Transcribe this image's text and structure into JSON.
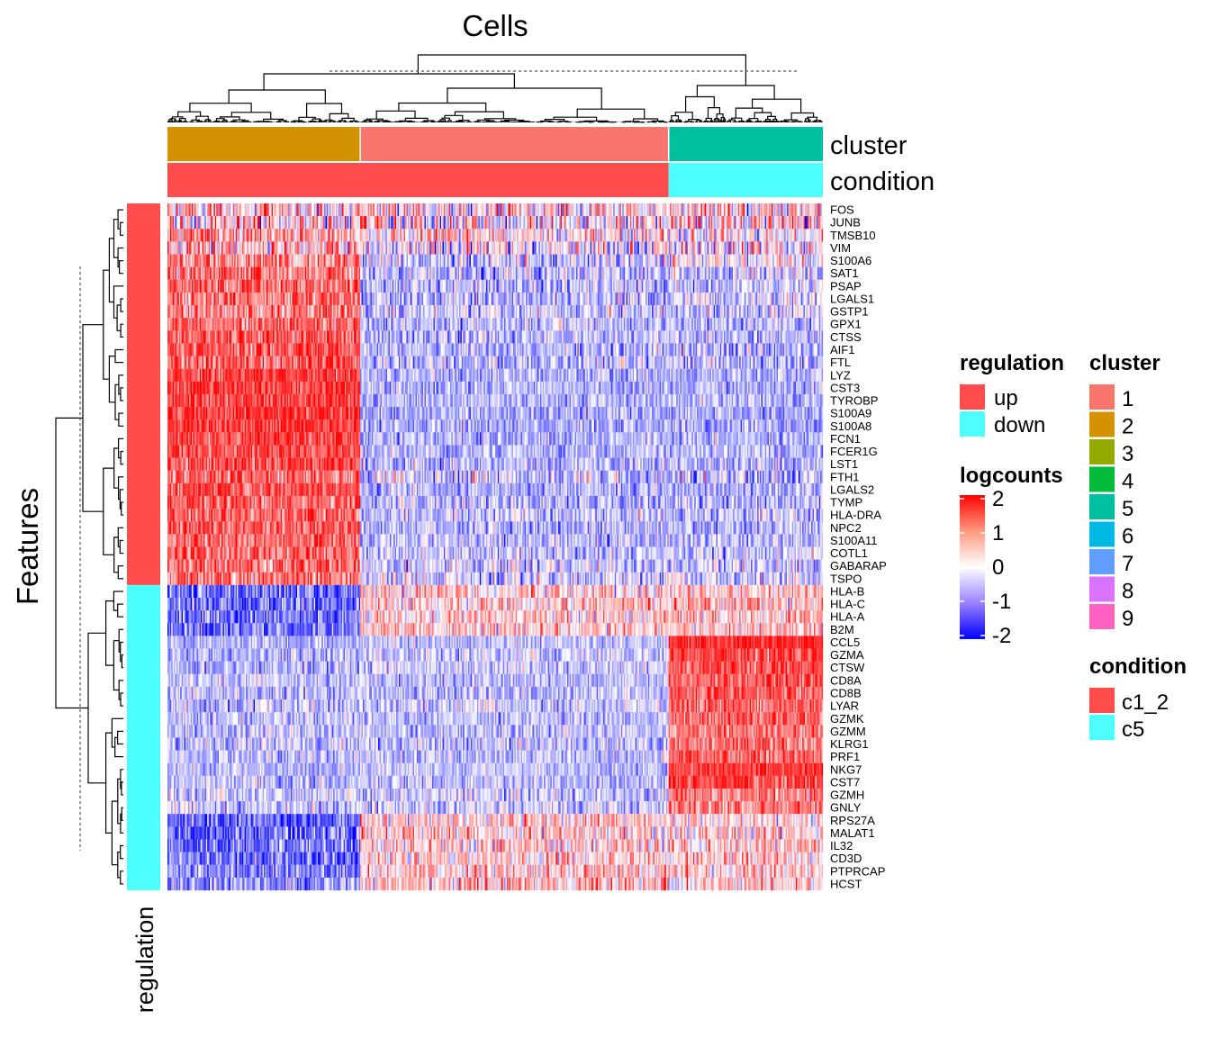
{
  "chart_data": {
    "type": "heatmap",
    "title": "Cells",
    "row_title": "Features",
    "value_name": "logcounts",
    "cell_groups": [
      {
        "cluster": "2",
        "condition": "c1_2",
        "approx_cells": 150
      },
      {
        "cluster": "1",
        "condition": "c1_2",
        "approx_cells": 240
      },
      {
        "cluster": "5",
        "condition": "c5",
        "approx_cells": 120
      }
    ],
    "features": [
      {
        "name": "FOS",
        "regulation": "up",
        "means": [
          0.4,
          0.3,
          0.4
        ],
        "noise": 1.2
      },
      {
        "name": "JUNB",
        "regulation": "up",
        "means": [
          0.2,
          0.1,
          0.3
        ],
        "noise": 1.4
      },
      {
        "name": "TMSB10",
        "regulation": "up",
        "means": [
          0.8,
          0.2,
          0.1
        ],
        "noise": 1.0
      },
      {
        "name": "VIM",
        "regulation": "up",
        "means": [
          0.6,
          -0.1,
          0.0
        ],
        "noise": 1.2
      },
      {
        "name": "S100A6",
        "regulation": "up",
        "means": [
          1.0,
          -0.4,
          0.0
        ],
        "noise": 0.9
      },
      {
        "name": "SAT1",
        "regulation": "up",
        "means": [
          1.1,
          -0.5,
          -0.4
        ],
        "noise": 0.8
      },
      {
        "name": "PSAP",
        "regulation": "up",
        "means": [
          1.2,
          -0.5,
          -0.5
        ],
        "noise": 0.8
      },
      {
        "name": "LGALS1",
        "regulation": "up",
        "means": [
          1.1,
          -0.5,
          -0.3
        ],
        "noise": 0.8
      },
      {
        "name": "GSTP1",
        "regulation": "up",
        "means": [
          1.0,
          -0.4,
          -0.4
        ],
        "noise": 0.8
      },
      {
        "name": "GPX1",
        "regulation": "up",
        "means": [
          1.2,
          -0.5,
          -0.5
        ],
        "noise": 0.7
      },
      {
        "name": "CTSS",
        "regulation": "up",
        "means": [
          1.3,
          -0.6,
          -0.6
        ],
        "noise": 0.7
      },
      {
        "name": "AIF1",
        "regulation": "up",
        "means": [
          1.4,
          -0.6,
          -0.6
        ],
        "noise": 0.7
      },
      {
        "name": "FTL",
        "regulation": "up",
        "means": [
          1.3,
          -0.6,
          -0.6
        ],
        "noise": 0.8
      },
      {
        "name": "LYZ",
        "regulation": "up",
        "means": [
          1.5,
          -0.6,
          -0.6
        ],
        "noise": 0.6
      },
      {
        "name": "CST3",
        "regulation": "up",
        "means": [
          1.5,
          -0.6,
          -0.6
        ],
        "noise": 0.6
      },
      {
        "name": "TYROBP",
        "regulation": "up",
        "means": [
          1.5,
          -0.6,
          -0.6
        ],
        "noise": 0.6
      },
      {
        "name": "S100A9",
        "regulation": "up",
        "means": [
          1.6,
          -0.7,
          -0.7
        ],
        "noise": 0.6
      },
      {
        "name": "S100A8",
        "regulation": "up",
        "means": [
          1.6,
          -0.7,
          -0.7
        ],
        "noise": 0.6
      },
      {
        "name": "FCN1",
        "regulation": "up",
        "means": [
          1.5,
          -0.6,
          -0.6
        ],
        "noise": 0.6
      },
      {
        "name": "FCER1G",
        "regulation": "up",
        "means": [
          1.5,
          -0.6,
          -0.6
        ],
        "noise": 0.6
      },
      {
        "name": "LST1",
        "regulation": "up",
        "means": [
          1.4,
          -0.6,
          -0.6
        ],
        "noise": 0.7
      },
      {
        "name": "FTH1",
        "regulation": "up",
        "means": [
          1.2,
          -0.5,
          -0.5
        ],
        "noise": 0.9
      },
      {
        "name": "LGALS2",
        "regulation": "up",
        "means": [
          1.4,
          -0.6,
          -0.6
        ],
        "noise": 0.6
      },
      {
        "name": "TYMP",
        "regulation": "up",
        "means": [
          1.3,
          -0.6,
          -0.6
        ],
        "noise": 0.7
      },
      {
        "name": "HLA-DRA",
        "regulation": "up",
        "means": [
          1.2,
          -0.5,
          -0.5
        ],
        "noise": 0.7
      },
      {
        "name": "NPC2",
        "regulation": "up",
        "means": [
          1.3,
          -0.6,
          -0.6
        ],
        "noise": 0.7
      },
      {
        "name": "S100A11",
        "regulation": "up",
        "means": [
          1.2,
          -0.5,
          -0.5
        ],
        "noise": 0.7
      },
      {
        "name": "COTL1",
        "regulation": "up",
        "means": [
          1.2,
          -0.5,
          -0.5
        ],
        "noise": 0.7
      },
      {
        "name": "GABARAP",
        "regulation": "up",
        "means": [
          1.1,
          -0.4,
          -0.4
        ],
        "noise": 0.8
      },
      {
        "name": "TSPO",
        "regulation": "up",
        "means": [
          1.1,
          -0.4,
          -0.4
        ],
        "noise": 0.8
      },
      {
        "name": "HLA-B",
        "regulation": "down",
        "means": [
          -1.2,
          0.4,
          0.5
        ],
        "noise": 0.8
      },
      {
        "name": "HLA-C",
        "regulation": "down",
        "means": [
          -1.1,
          0.4,
          0.5
        ],
        "noise": 0.8
      },
      {
        "name": "HLA-A",
        "regulation": "down",
        "means": [
          -1.0,
          0.4,
          0.5
        ],
        "noise": 0.8
      },
      {
        "name": "B2M",
        "regulation": "down",
        "means": [
          -1.1,
          0.4,
          0.5
        ],
        "noise": 0.8
      },
      {
        "name": "CCL5",
        "regulation": "down",
        "means": [
          -0.6,
          -0.5,
          1.8
        ],
        "noise": 0.5
      },
      {
        "name": "GZMA",
        "regulation": "down",
        "means": [
          -0.6,
          -0.5,
          1.5
        ],
        "noise": 0.6
      },
      {
        "name": "CTSW",
        "regulation": "down",
        "means": [
          -0.6,
          -0.4,
          1.4
        ],
        "noise": 0.6
      },
      {
        "name": "CD8A",
        "regulation": "down",
        "means": [
          -0.5,
          -0.5,
          1.3
        ],
        "noise": 0.6
      },
      {
        "name": "CD8B",
        "regulation": "down",
        "means": [
          -0.5,
          -0.5,
          1.3
        ],
        "noise": 0.6
      },
      {
        "name": "LYAR",
        "regulation": "down",
        "means": [
          -0.5,
          -0.4,
          1.2
        ],
        "noise": 0.7
      },
      {
        "name": "GZMK",
        "regulation": "down",
        "means": [
          -0.5,
          -0.5,
          1.3
        ],
        "noise": 0.6
      },
      {
        "name": "GZMM",
        "regulation": "down",
        "means": [
          -0.5,
          -0.5,
          1.1
        ],
        "noise": 0.6
      },
      {
        "name": "KLRG1",
        "regulation": "down",
        "means": [
          -0.5,
          -0.5,
          1.0
        ],
        "noise": 0.7
      },
      {
        "name": "PRF1",
        "regulation": "down",
        "means": [
          -0.5,
          -0.5,
          1.2
        ],
        "noise": 0.6
      },
      {
        "name": "NKG7",
        "regulation": "down",
        "means": [
          -0.6,
          -0.5,
          1.6
        ],
        "noise": 0.5
      },
      {
        "name": "CST7",
        "regulation": "down",
        "means": [
          -0.5,
          -0.5,
          1.4
        ],
        "noise": 0.6
      },
      {
        "name": "GZMH",
        "regulation": "down",
        "means": [
          -0.4,
          -0.4,
          1.1
        ],
        "noise": 0.7
      },
      {
        "name": "GNLY",
        "regulation": "down",
        "means": [
          -0.4,
          -0.4,
          1.0
        ],
        "noise": 0.7
      },
      {
        "name": "RPS27A",
        "regulation": "down",
        "means": [
          -1.3,
          0.4,
          0.3
        ],
        "noise": 0.8
      },
      {
        "name": "MALAT1",
        "regulation": "down",
        "means": [
          -1.2,
          0.4,
          0.3
        ],
        "noise": 0.9
      },
      {
        "name": "IL32",
        "regulation": "down",
        "means": [
          -1.1,
          0.4,
          0.4
        ],
        "noise": 0.8
      },
      {
        "name": "CD3D",
        "regulation": "down",
        "means": [
          -1.1,
          0.4,
          0.4
        ],
        "noise": 0.8
      },
      {
        "name": "PTPRCAP",
        "regulation": "down",
        "means": [
          -1.0,
          0.4,
          0.4
        ],
        "noise": 0.8
      },
      {
        "name": "HCST",
        "regulation": "down",
        "means": [
          -0.8,
          0.5,
          0.4
        ],
        "noise": 0.9
      }
    ],
    "color_scale": {
      "min": -2,
      "mid": 0,
      "max": 2,
      "low": "#0000ff",
      "mid_color": "#ffffff",
      "high": "#ff0000"
    },
    "annotation_colors": {
      "cluster": {
        "1": "#F8766D",
        "2": "#D39200",
        "3": "#93AA00",
        "4": "#00BA38",
        "5": "#00C19F",
        "6": "#00B9E3",
        "7": "#619CFF",
        "8": "#DB72FB",
        "9": "#FF61C3"
      },
      "condition": {
        "c1_2": "#FF4D4D",
        "c5": "#4DFFFF"
      },
      "regulation": {
        "up": "#FF4D4D",
        "down": "#4DFFFF"
      }
    },
    "annotation_labels": {
      "cluster": "cluster",
      "condition": "condition",
      "regulation": "regulation"
    },
    "legends": {
      "regulation": {
        "title": "regulation",
        "items": [
          "up",
          "down"
        ]
      },
      "logcounts": {
        "title": "logcounts",
        "ticks": [
          "2",
          "1",
          "0",
          "-1",
          "-2"
        ],
        "tick_values": [
          2,
          1,
          0,
          -1,
          -2
        ]
      },
      "cluster": {
        "title": "cluster",
        "items": [
          "1",
          "2",
          "3",
          "4",
          "5",
          "6",
          "7",
          "8",
          "9"
        ]
      },
      "condition": {
        "title": "condition",
        "items": [
          "c1_2",
          "c5"
        ]
      }
    }
  }
}
